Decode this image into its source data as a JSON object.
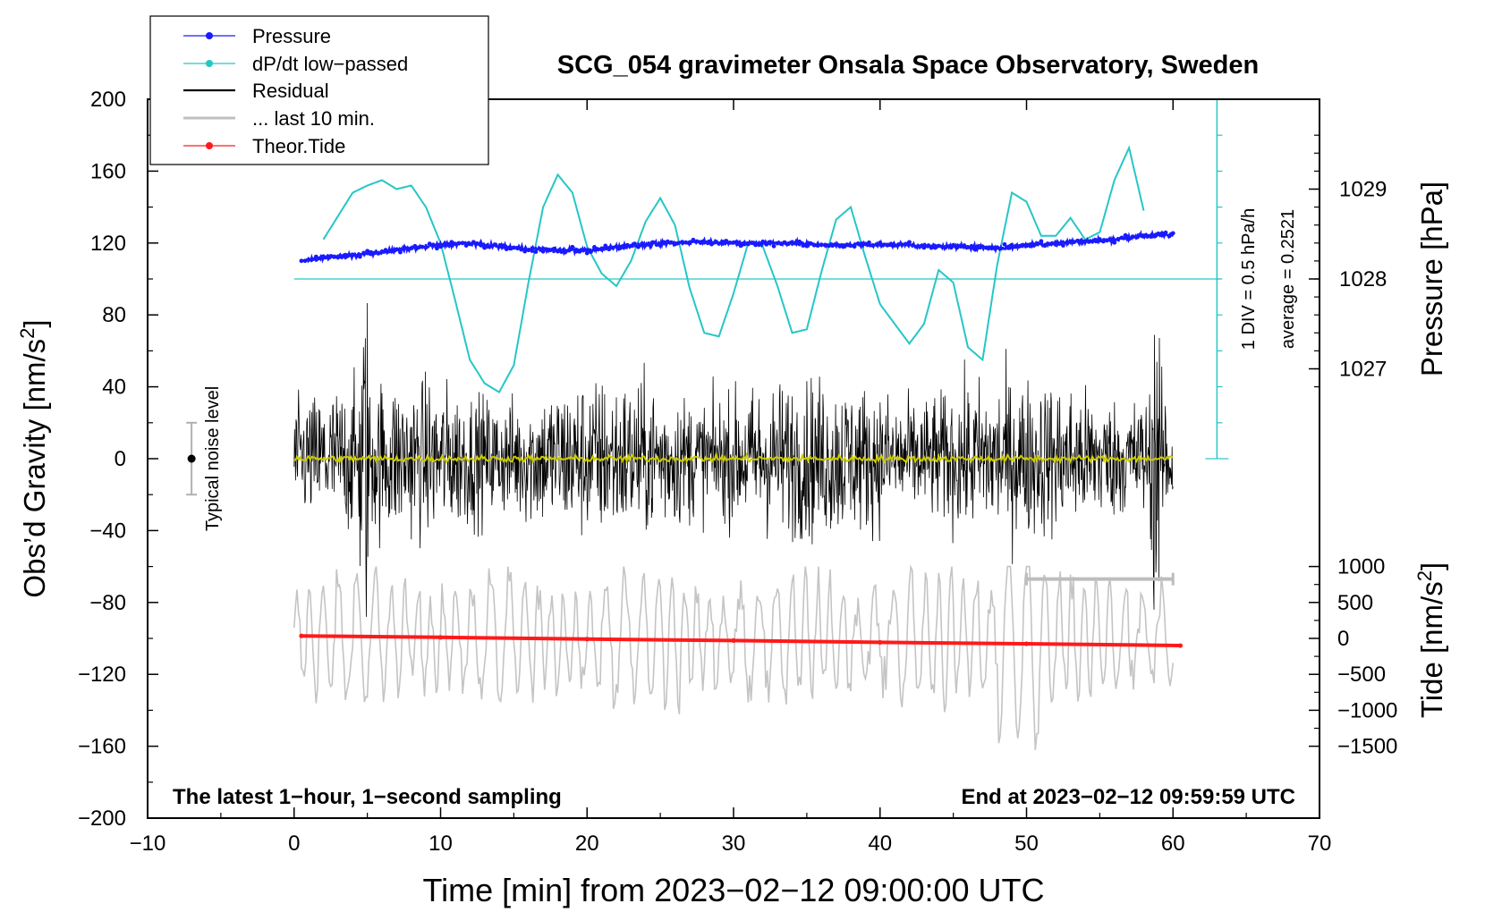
{
  "chart_data": {
    "type": "line",
    "title": "SCG_054 gravimeter Onsala Space Observatory, Sweden",
    "xlabel": "Time [min] from 2023−02−12 09:00:00 UTC",
    "ylabel_left_main": "Obs’d Gravity [nm/s",
    "ylabel_left_sup": "2",
    "ylabel_left_end": "]",
    "ylabel_right_pressure": "Pressure [hPa]",
    "ylabel_right_tide_main": "Tide [nm/s",
    "ylabel_right_tide_sup": "2",
    "ylabel_right_tide_end": "]",
    "xlim": [
      -10,
      70
    ],
    "ylim_gravity": [
      -200,
      200
    ],
    "x_ticks": [
      "−10",
      "0",
      "10",
      "20",
      "30",
      "40",
      "50",
      "60",
      "70"
    ],
    "x_tick_values": [
      -10,
      0,
      10,
      20,
      30,
      40,
      50,
      60,
      70
    ],
    "y_ticks": [
      "200",
      "160",
      "120",
      "80",
      "40",
      "0",
      "−40",
      "−80",
      "−120",
      "−160",
      "−200"
    ],
    "y_tick_values": [
      200,
      160,
      120,
      80,
      40,
      0,
      -40,
      -80,
      -120,
      -160,
      -200
    ],
    "pressure_ticks": [
      "1029",
      "1028",
      "1027"
    ],
    "pressure_tick_values": [
      1029,
      1028,
      1027
    ],
    "pressure_axis": {
      "gravity_at_1028": 100,
      "gravity_per_hPa": 50
    },
    "tide_ticks": [
      "1000",
      "500",
      "0",
      "−500",
      "−1000",
      "−1500"
    ],
    "tide_tick_values": [
      1000,
      500,
      0,
      -500,
      -1000,
      -1500
    ],
    "tide_axis": {
      "gravity_at_0": -100,
      "gravity_per_nms2": 0.04
    },
    "legend": [
      {
        "label": "Pressure",
        "color": "#1a1aff",
        "style": "line-dot"
      },
      {
        "label": "dP/dt low−passed",
        "color": "#26c6c6",
        "style": "line-dot"
      },
      {
        "label": "Residual",
        "color": "#000000",
        "style": "line"
      },
      {
        "label": "... last 10 min.",
        "color": "#c0c0c0",
        "style": "line"
      },
      {
        "label": "Theor.Tide",
        "color": "#ff1a1a",
        "style": "line-dot"
      }
    ],
    "annotations": {
      "bottom_left": "The latest 1−hour, 1−second sampling",
      "bottom_right": "End at 2023−02−12 09:59:59 UTC",
      "noise_label": "Typical noise level",
      "dpdt_scale": "1 DIV = 0.5 hPa/h",
      "dpdt_average": "average = 0.2521"
    },
    "noise_bar": {
      "x": -7,
      "y_min": -20,
      "y_max": 20
    },
    "dpdt_scale_bar": {
      "x": 63,
      "y_min": 0,
      "y_max": 200,
      "baseline": 100
    },
    "last10_bar": {
      "x_min": 50,
      "x_max": 60,
      "y": -67
    },
    "series": [
      {
        "name": "Pressure",
        "axis": "pressure_hPa",
        "x": [
          0.5,
          2,
          4,
          6,
          8,
          10,
          12,
          14,
          16,
          18,
          20,
          22,
          24,
          26,
          28,
          30,
          32,
          34,
          36,
          38,
          40,
          42,
          44,
          46,
          48,
          50,
          52,
          54,
          56,
          58,
          60
        ],
        "values": [
          1028.2,
          1028.24,
          1028.26,
          1028.3,
          1028.34,
          1028.38,
          1028.4,
          1028.36,
          1028.34,
          1028.32,
          1028.32,
          1028.36,
          1028.38,
          1028.4,
          1028.42,
          1028.4,
          1028.4,
          1028.4,
          1028.38,
          1028.38,
          1028.38,
          1028.38,
          1028.36,
          1028.36,
          1028.34,
          1028.38,
          1028.4,
          1028.42,
          1028.44,
          1028.48,
          1028.5
        ]
      },
      {
        "name": "dP/dt low−passed",
        "axis": "gravity",
        "x": [
          2,
          3,
          4,
          5,
          6,
          7,
          8,
          9,
          10,
          11,
          12,
          13,
          14,
          15,
          16,
          17,
          18,
          19,
          20,
          21,
          22,
          23,
          24,
          25,
          26,
          27,
          28,
          29,
          30,
          31,
          32,
          33,
          34,
          35,
          36,
          37,
          38,
          39,
          40,
          41,
          42,
          43,
          44,
          45,
          46,
          47,
          48,
          49,
          50,
          51,
          52,
          53,
          54,
          55,
          56,
          57,
          58
        ],
        "values": [
          122,
          135,
          148,
          152,
          155,
          150,
          152,
          140,
          120,
          88,
          55,
          42,
          37,
          52,
          98,
          140,
          158,
          148,
          118,
          103,
          96,
          110,
          132,
          145,
          130,
          95,
          70,
          68,
          92,
          120,
          118,
          96,
          70,
          72,
          104,
          133,
          140,
          112,
          86,
          75,
          64,
          75,
          105,
          98,
          62,
          55,
          108,
          148,
          143,
          124,
          124,
          134,
          122,
          126,
          155,
          173,
          138
        ]
      },
      {
        "name": "Theor.Tide",
        "axis": "tide_nms2",
        "x": [
          0.5,
          10,
          20,
          30,
          40,
          50,
          60.5
        ],
        "values": [
          35,
          15,
          -10,
          -30,
          -55,
          -75,
          -100
        ]
      }
    ]
  }
}
